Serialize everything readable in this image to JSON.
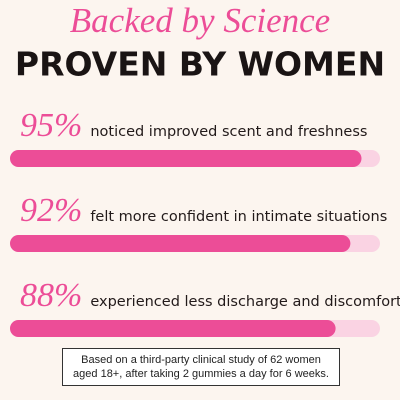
{
  "chart_data": {
    "type": "progress",
    "title": "Backed by Science",
    "subtitle": "PROVEN BY WOMEN",
    "categories": [
      "noticed improved scent and freshness",
      "felt more confident in intimate situations",
      "experienced less discharge and discomfort"
    ],
    "values": [
      95,
      92,
      88
    ],
    "value_labels": [
      "95%",
      "92%",
      "88%"
    ],
    "xlim": [
      0,
      100
    ],
    "color": "#ec4d97",
    "track_color": "#fad3e3",
    "note": "Based on a third-party clinical study of 62 women aged 18+, after taking 2 gummies a day for 6 weeks."
  }
}
